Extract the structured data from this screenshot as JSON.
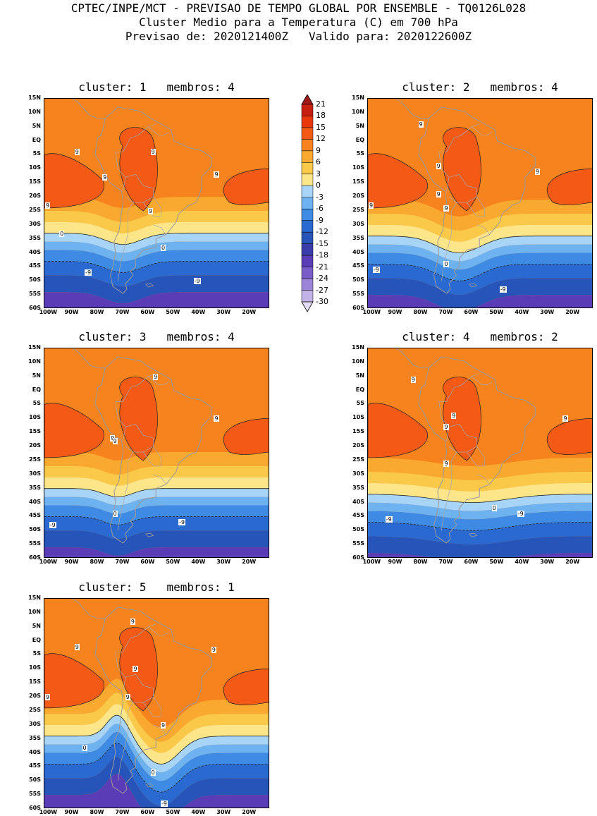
{
  "header": {
    "line1": "CPTEC/INPE/MCT - PREVISAO DE TEMPO GLOBAL POR ENSEMBLE - TQ0126L028",
    "line2": "Cluster Medio para a Temperatura (C) em 700 hPa",
    "line3": "Previsao de: 2020121400Z   Valido para: 2020122600Z"
  },
  "axes": {
    "lat_ticks": [
      "15N",
      "10N",
      "5N",
      "EQ",
      "5S",
      "10S",
      "15S",
      "20S",
      "25S",
      "30S",
      "35S",
      "40S",
      "45S",
      "50S",
      "55S",
      "60S"
    ],
    "lon_ticks": [
      "100W",
      "90W",
      "80W",
      "70W",
      "60W",
      "50W",
      "40W",
      "30W",
      "20W"
    ]
  },
  "colorbar": {
    "labels": [
      "21",
      "18",
      "15",
      "12",
      "9",
      "6",
      "3",
      "0",
      "-3",
      "-6",
      "-9",
      "-12",
      "-15",
      "-18",
      "-21",
      "-24",
      "-27",
      "-30"
    ],
    "colors": [
      "#a01818",
      "#c82010",
      "#e8380c",
      "#f25a16",
      "#f7831f",
      "#f9a830",
      "#fbc94a",
      "#fde68a",
      "#a8d4f8",
      "#6fb2f0",
      "#3f8ae3",
      "#2a6ad0",
      "#2754b8",
      "#3a3cab",
      "#5a3cb6",
      "#7a5cc8",
      "#9c84d8",
      "#c2b2e8",
      "#e4dcf4"
    ]
  },
  "panels": [
    {
      "title": "cluster: 1   membros: 4",
      "labels": [
        {
          "t": "9",
          "lat": -4,
          "lon": -88
        },
        {
          "t": "9",
          "lat": -4,
          "lon": -58
        },
        {
          "t": "9",
          "lat": -13,
          "lon": -77
        },
        {
          "t": "9",
          "lat": -12,
          "lon": -33
        },
        {
          "t": "9",
          "lat": -23,
          "lon": -100
        },
        {
          "t": "9",
          "lat": -25,
          "lon": -59
        },
        {
          "t": "0",
          "lat": -33,
          "lon": -94
        },
        {
          "t": "0",
          "lat": -38,
          "lon": -54
        },
        {
          "t": "-9",
          "lat": -47,
          "lon": -84
        },
        {
          "t": "-9",
          "lat": -50,
          "lon": -41
        }
      ]
    },
    {
      "title": "cluster: 2   membros: 4",
      "labels": [
        {
          "t": "9",
          "lat": 6,
          "lon": -80
        },
        {
          "t": "9",
          "lat": -9,
          "lon": -73
        },
        {
          "t": "9",
          "lat": -11,
          "lon": -34
        },
        {
          "t": "9",
          "lat": -19,
          "lon": -73
        },
        {
          "t": "9",
          "lat": -23,
          "lon": -100
        },
        {
          "t": "9",
          "lat": -24,
          "lon": -70
        },
        {
          "t": "0",
          "lat": -44,
          "lon": -70
        },
        {
          "t": "-9",
          "lat": -46,
          "lon": -98
        },
        {
          "t": "-9",
          "lat": -53,
          "lon": -48
        }
      ]
    },
    {
      "title": "cluster: 3   membros: 4",
      "labels": [
        {
          "t": "9",
          "lat": 5,
          "lon": -57
        },
        {
          "t": "9",
          "lat": -10,
          "lon": -33
        },
        {
          "t": "9",
          "lat": -17,
          "lon": -74
        },
        {
          "t": "9",
          "lat": -18,
          "lon": -73
        },
        {
          "t": "0",
          "lat": -44,
          "lon": -73
        },
        {
          "t": "-9",
          "lat": -48,
          "lon": -98
        },
        {
          "t": "-9",
          "lat": -47,
          "lon": -47
        }
      ]
    },
    {
      "title": "cluster: 4   membros: 2",
      "labels": [
        {
          "t": "9",
          "lat": 4,
          "lon": -83
        },
        {
          "t": "9",
          "lat": -9,
          "lon": -67
        },
        {
          "t": "9",
          "lat": -13,
          "lon": -70
        },
        {
          "t": "9",
          "lat": -10,
          "lon": -23
        },
        {
          "t": "9",
          "lat": -26,
          "lon": -70
        },
        {
          "t": "0",
          "lat": -42,
          "lon": -51
        },
        {
          "t": "-9",
          "lat": -46,
          "lon": -93
        },
        {
          "t": "-9",
          "lat": -44,
          "lon": -41
        }
      ]
    },
    {
      "title": "cluster: 5   membros: 1",
      "labels": [
        {
          "t": "9",
          "lat": 7,
          "lon": -66
        },
        {
          "t": "9",
          "lat": -2,
          "lon": -88
        },
        {
          "t": "9",
          "lat": -3,
          "lon": -34
        },
        {
          "t": "9",
          "lat": -10,
          "lon": -65
        },
        {
          "t": "9",
          "lat": -20,
          "lon": -100
        },
        {
          "t": "9",
          "lat": -20,
          "lon": -68
        },
        {
          "t": "9",
          "lat": -30,
          "lon": -54
        },
        {
          "t": "0",
          "lat": -38,
          "lon": -85
        },
        {
          "t": "0",
          "lat": -47,
          "lon": -58
        },
        {
          "t": "-9",
          "lat": -58,
          "lon": -54
        }
      ]
    }
  ]
}
